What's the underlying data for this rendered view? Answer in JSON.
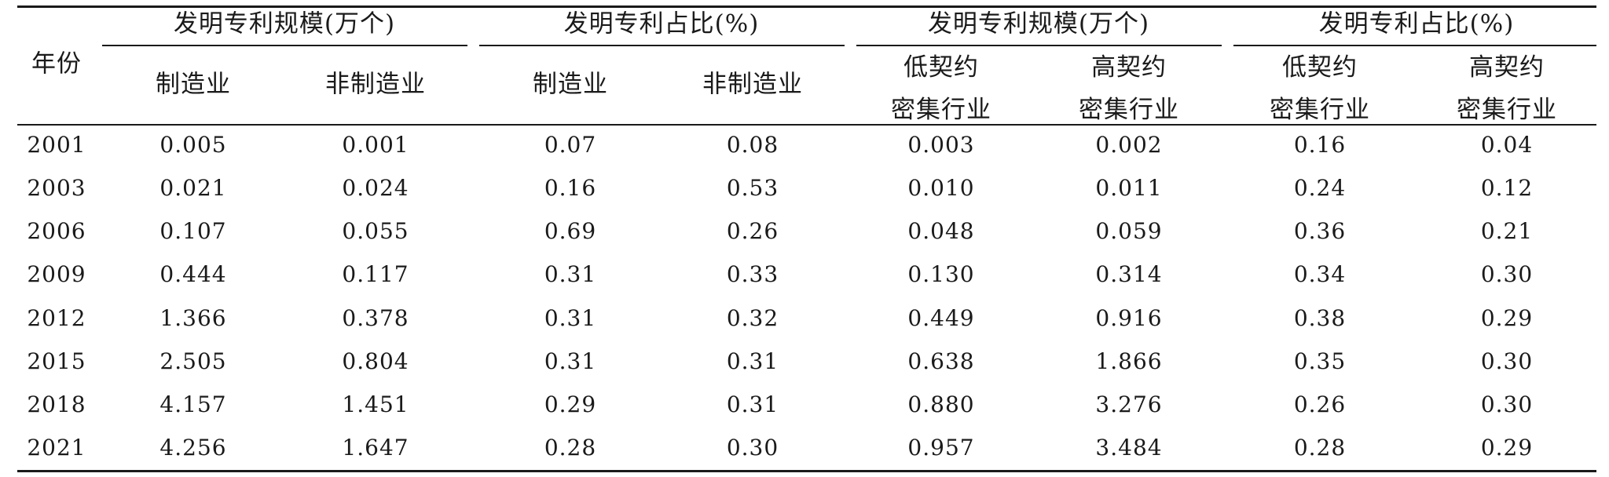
{
  "table": {
    "year_header": "年份",
    "groups": [
      "发明专利规模(万个)",
      "发明专利占比(%)",
      "发明专利规模(万个)",
      "发明专利占比(%)"
    ],
    "subheaders": [
      [
        "制造业"
      ],
      [
        "非制造业"
      ],
      [
        "制造业"
      ],
      [
        "非制造业"
      ],
      [
        "低契约",
        "密集行业"
      ],
      [
        "高契约",
        "密集行业"
      ],
      [
        "低契约",
        "密集行业"
      ],
      [
        "高契约",
        "密集行业"
      ]
    ],
    "rows": [
      [
        "2001",
        "0.005",
        "0.001",
        "0.07",
        "0.08",
        "0.003",
        "0.002",
        "0.16",
        "0.04"
      ],
      [
        "2003",
        "0.021",
        "0.024",
        "0.16",
        "0.53",
        "0.010",
        "0.011",
        "0.24",
        "0.12"
      ],
      [
        "2006",
        "0.107",
        "0.055",
        "0.69",
        "0.26",
        "0.048",
        "0.059",
        "0.36",
        "0.21"
      ],
      [
        "2009",
        "0.444",
        "0.117",
        "0.31",
        "0.33",
        "0.130",
        "0.314",
        "0.34",
        "0.30"
      ],
      [
        "2012",
        "1.366",
        "0.378",
        "0.31",
        "0.32",
        "0.449",
        "0.916",
        "0.38",
        "0.29"
      ],
      [
        "2015",
        "2.505",
        "0.804",
        "0.31",
        "0.31",
        "0.638",
        "1.866",
        "0.35",
        "0.30"
      ],
      [
        "2018",
        "4.157",
        "1.451",
        "0.29",
        "0.31",
        "0.880",
        "3.276",
        "0.26",
        "0.30"
      ],
      [
        "2021",
        "4.256",
        "1.647",
        "0.28",
        "0.30",
        "0.957",
        "3.484",
        "0.28",
        "0.29"
      ]
    ]
  }
}
